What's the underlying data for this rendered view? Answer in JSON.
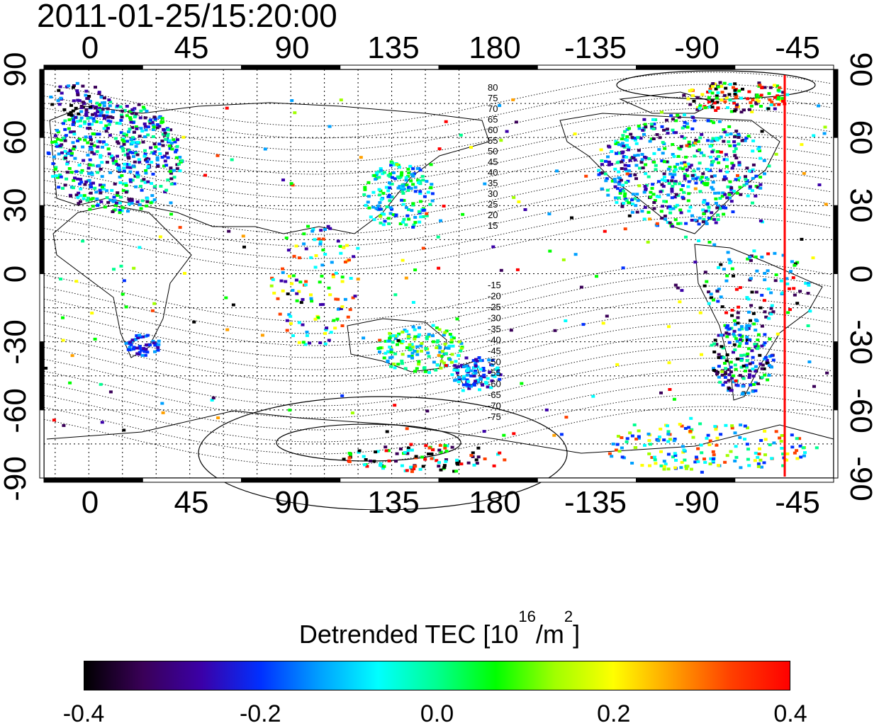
{
  "title": "2011-01-25/15:20:00",
  "map": {
    "top_axis_labels": [
      "0",
      "45",
      "90",
      "135",
      "180",
      "-135",
      "-90",
      "-45"
    ],
    "bottom_axis_labels": [
      "0",
      "45",
      "90",
      "135",
      "180",
      "-135",
      "-90",
      "-45"
    ],
    "left_axis_labels": [
      "90",
      "60",
      "30",
      "0",
      "-30",
      "-60",
      "-90"
    ],
    "right_axis_labels": [
      "90",
      "60",
      "30",
      "0",
      "-30",
      "-60",
      "-90"
    ],
    "lon_range": [
      -20,
      170
    ],
    "lat_range": [
      -90,
      90
    ],
    "graticule": "dotted, every 15 degrees",
    "contour_labels_north": [
      "80",
      "75",
      "70",
      "65",
      "60",
      "55",
      "50",
      "45",
      "40",
      "35",
      "30",
      "25",
      "20",
      "15"
    ],
    "contour_labels_south": [
      "-15",
      "-20",
      "-25",
      "-30",
      "-35",
      "-40",
      "-45",
      "-50",
      "-55",
      "-60",
      "-65",
      "-70",
      "-75"
    ],
    "marker_line": {
      "longitude": -53,
      "color": "#ff0000"
    }
  },
  "colorbar": {
    "title_prefix": "Detrended TEC  [10",
    "title_exp1": "16",
    "title_mid": "/m",
    "title_exp2": "2",
    "title_suffix": "]",
    "min": -0.4,
    "max": 0.4,
    "tick_labels": [
      "-0.4",
      "-0.2",
      "0.0",
      "0.2",
      "0.4"
    ],
    "colors": [
      "#000000",
      "#3a0058",
      "#3b00a8",
      "#0030ff",
      "#00a0ff",
      "#00ffff",
      "#00ff90",
      "#00ff00",
      "#a0ff00",
      "#ffff00",
      "#ffa000",
      "#ff4000",
      "#ff0000"
    ]
  }
}
